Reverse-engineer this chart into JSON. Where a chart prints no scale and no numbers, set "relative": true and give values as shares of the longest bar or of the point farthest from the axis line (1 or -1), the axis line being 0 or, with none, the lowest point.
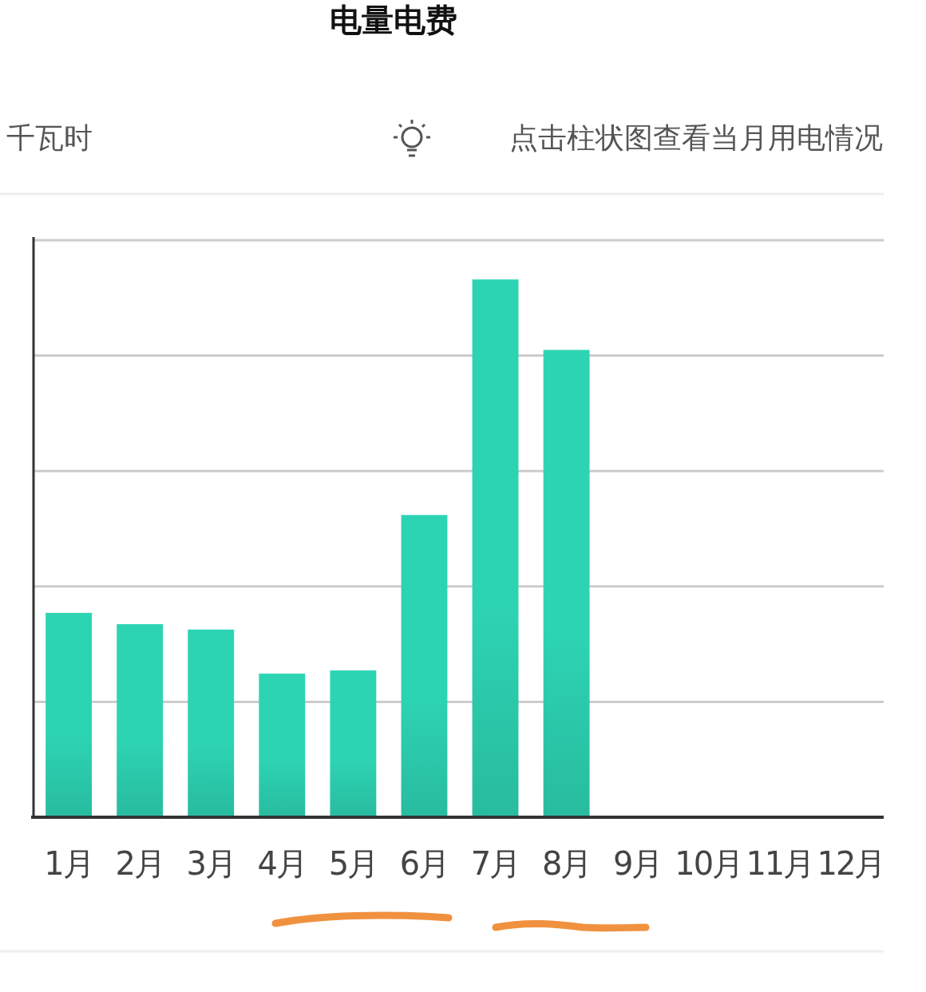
{
  "chart_data": {
    "type": "bar",
    "title": "电量电费",
    "ylabel": "千瓦时",
    "annotations": [
      "点击柱状图查看当月用电情况"
    ],
    "categories": [
      "1月",
      "2月",
      "3月",
      "4月",
      "5月",
      "6月",
      "7月",
      "8月",
      "9月",
      "10月",
      "11月",
      "12月"
    ],
    "values": [
      0.38,
      0.359,
      0.349,
      0.267,
      0.273,
      0.562,
      1,
      0.869,
      null,
      null,
      null,
      null
    ],
    "color": "#2dd4b4",
    "relative": true,
    "grid": "y"
  }
}
